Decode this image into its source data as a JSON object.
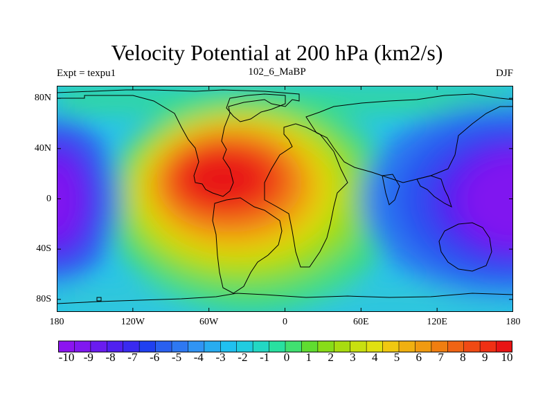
{
  "header": {
    "title": "Velocity Potential at 200 hPa (km2/s)",
    "left": "Expt = texpu1",
    "center": "102_6_MaBP",
    "right": "DJF"
  },
  "map": {
    "projection": "cylindrical-equidistant",
    "lon_range": [
      -180,
      180
    ],
    "lat_range": [
      -90,
      90
    ],
    "x_ticks": [
      {
        "lon": -180,
        "label": "180"
      },
      {
        "lon": -120,
        "label": "120W"
      },
      {
        "lon": -60,
        "label": "60W"
      },
      {
        "lon": 0,
        "label": "0"
      },
      {
        "lon": 60,
        "label": "60E"
      },
      {
        "lon": 120,
        "label": "120E"
      },
      {
        "lon": 180,
        "label": "180"
      }
    ],
    "y_ticks": [
      {
        "lat": 80,
        "label": "80N"
      },
      {
        "lat": 40,
        "label": "40N"
      },
      {
        "lat": 0,
        "label": "0"
      },
      {
        "lat": -40,
        "label": "40S"
      },
      {
        "lat": -80,
        "label": "80S"
      }
    ],
    "field": {
      "description": "velocity potential minima (purple) over central Pacific, maxima (red) over tropical Atlantic/South America",
      "features": [
        {
          "name": "max-atlantic",
          "lon": -35,
          "lat": 8,
          "value": 10
        },
        {
          "name": "min-west-pacific",
          "lon": 165,
          "lat": -5,
          "value": -10
        },
        {
          "name": "min-east-pacific",
          "lon": -175,
          "lat": 0,
          "value": -10
        }
      ]
    }
  },
  "colorbar": {
    "levels": [
      -10,
      -9,
      -8,
      -7,
      -6,
      -5,
      -4,
      -3,
      -2,
      -1,
      0,
      1,
      2,
      3,
      4,
      5,
      6,
      7,
      8,
      9,
      10
    ],
    "labels": [
      "-10",
      "-9",
      "-8",
      "-7",
      "-6",
      "-5",
      "-4",
      "-3",
      "-2",
      "-1",
      "0",
      "1",
      "2",
      "3",
      "4",
      "5",
      "6",
      "7",
      "8",
      "9",
      "10"
    ],
    "colors": [
      "#8c14f0",
      "#8018f0",
      "#6a1cf0",
      "#5020f0",
      "#3a2af0",
      "#2040f0",
      "#2a60f0",
      "#2e78f2",
      "#3094f4",
      "#28acf0",
      "#20c0f0",
      "#20cce0",
      "#22d8c4",
      "#28e0a0",
      "#40e070",
      "#60dc30",
      "#88dc18",
      "#a8dc10",
      "#c8e010",
      "#e0e010",
      "#f0c810",
      "#f0b010",
      "#f09a10",
      "#f07e10",
      "#f06414",
      "#f04a14",
      "#f03014",
      "#e81414"
    ]
  }
}
